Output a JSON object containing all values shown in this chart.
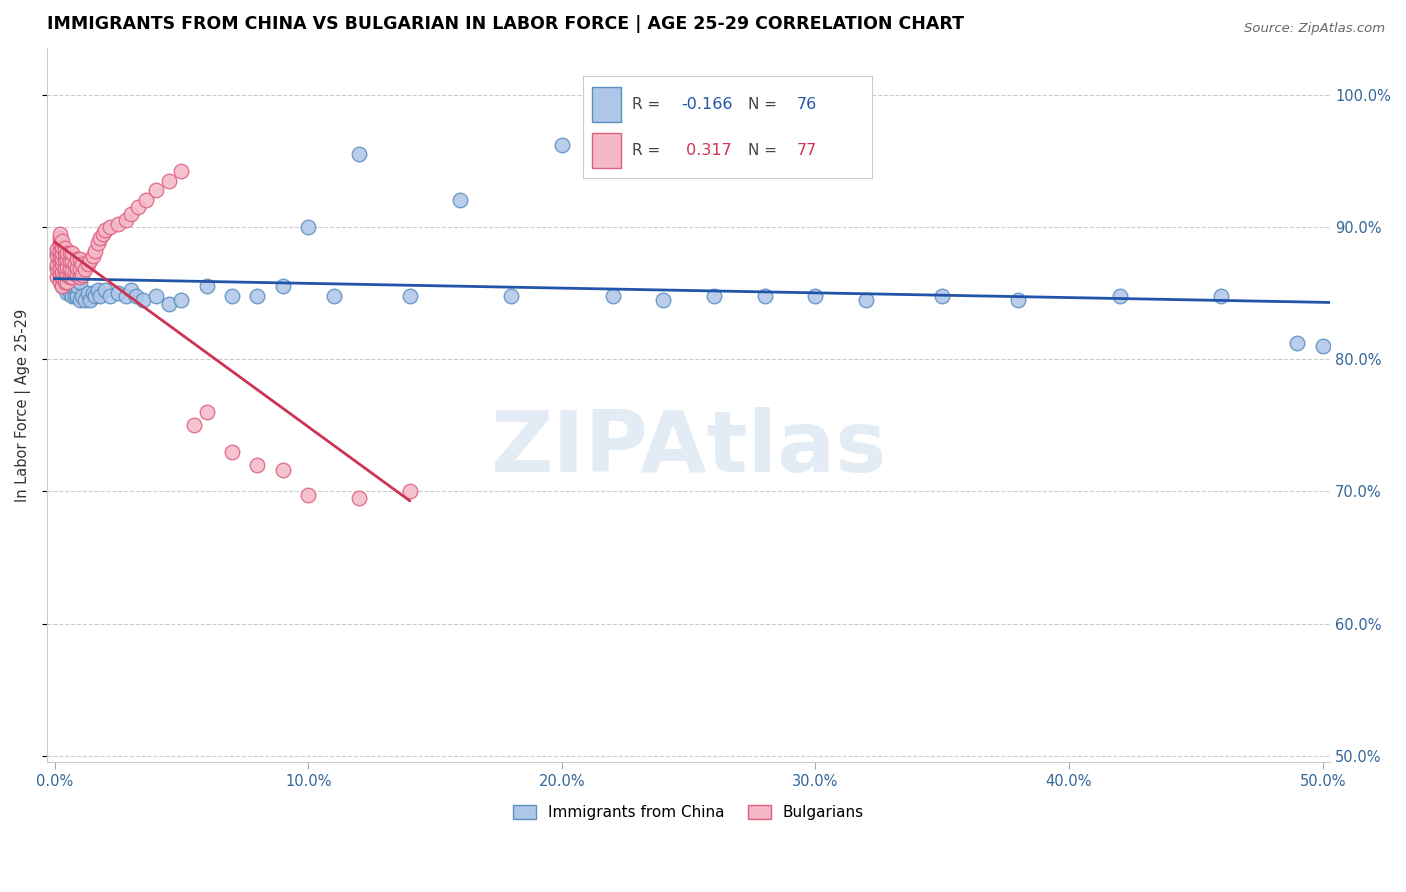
{
  "title": "IMMIGRANTS FROM CHINA VS BULGARIAN IN LABOR FORCE | AGE 25-29 CORRELATION CHART",
  "source": "Source: ZipAtlas.com",
  "ylabel": "In Labor Force | Age 25-29",
  "xlim": [
    -0.003,
    0.503
  ],
  "ylim": [
    0.495,
    1.035
  ],
  "xticks": [
    0.0,
    0.1,
    0.2,
    0.3,
    0.4,
    0.5
  ],
  "xtick_labels": [
    "0.0%",
    "10.0%",
    "20.0%",
    "30.0%",
    "40.0%",
    "50.0%"
  ],
  "yticks": [
    0.5,
    0.6,
    0.7,
    0.8,
    0.9,
    1.0
  ],
  "ytick_labels": [
    "50.0%",
    "60.0%",
    "70.0%",
    "80.0%",
    "90.0%",
    "100.0%"
  ],
  "china_color": "#aec6e8",
  "china_edge_color": "#5b8fbe",
  "bulgarian_color": "#f4b8c8",
  "bulgarian_edge_color": "#e06080",
  "trend_china_color": "#2255aa",
  "trend_bulgarian_color": "#cc3355",
  "watermark": "ZIPAtlas",
  "watermark_color": "#ccdded",
  "china_x": [
    0.001,
    0.001,
    0.002,
    0.002,
    0.002,
    0.002,
    0.003,
    0.003,
    0.003,
    0.003,
    0.003,
    0.004,
    0.004,
    0.004,
    0.004,
    0.004,
    0.005,
    0.005,
    0.005,
    0.005,
    0.005,
    0.006,
    0.006,
    0.006,
    0.006,
    0.007,
    0.007,
    0.007,
    0.008,
    0.008,
    0.008,
    0.009,
    0.009,
    0.01,
    0.01,
    0.011,
    0.012,
    0.013,
    0.014,
    0.015,
    0.016,
    0.017,
    0.018,
    0.02,
    0.022,
    0.025,
    0.028,
    0.03,
    0.032,
    0.035,
    0.04,
    0.045,
    0.05,
    0.06,
    0.07,
    0.08,
    0.09,
    0.1,
    0.11,
    0.12,
    0.14,
    0.16,
    0.18,
    0.2,
    0.22,
    0.24,
    0.26,
    0.28,
    0.3,
    0.32,
    0.35,
    0.38,
    0.42,
    0.46,
    0.49,
    0.5
  ],
  "china_y": [
    0.87,
    0.88,
    0.86,
    0.87,
    0.875,
    0.885,
    0.855,
    0.86,
    0.87,
    0.875,
    0.88,
    0.855,
    0.86,
    0.865,
    0.87,
    0.875,
    0.85,
    0.855,
    0.86,
    0.865,
    0.87,
    0.85,
    0.855,
    0.858,
    0.862,
    0.848,
    0.855,
    0.86,
    0.848,
    0.855,
    0.862,
    0.848,
    0.855,
    0.845,
    0.858,
    0.848,
    0.845,
    0.85,
    0.845,
    0.85,
    0.848,
    0.852,
    0.848,
    0.852,
    0.848,
    0.85,
    0.848,
    0.852,
    0.848,
    0.845,
    0.848,
    0.842,
    0.845,
    0.855,
    0.848,
    0.848,
    0.855,
    0.9,
    0.848,
    0.955,
    0.848,
    0.92,
    0.848,
    0.962,
    0.848,
    0.845,
    0.848,
    0.848,
    0.848,
    0.845,
    0.848,
    0.845,
    0.848,
    0.848,
    0.812,
    0.81
  ],
  "bulgarian_x": [
    0.001,
    0.001,
    0.001,
    0.001,
    0.001,
    0.002,
    0.002,
    0.002,
    0.002,
    0.002,
    0.002,
    0.002,
    0.002,
    0.002,
    0.003,
    0.003,
    0.003,
    0.003,
    0.003,
    0.003,
    0.003,
    0.003,
    0.004,
    0.004,
    0.004,
    0.004,
    0.004,
    0.004,
    0.005,
    0.005,
    0.005,
    0.005,
    0.005,
    0.006,
    0.006,
    0.006,
    0.006,
    0.007,
    0.007,
    0.007,
    0.007,
    0.008,
    0.008,
    0.009,
    0.009,
    0.009,
    0.01,
    0.01,
    0.01,
    0.011,
    0.011,
    0.012,
    0.013,
    0.014,
    0.015,
    0.016,
    0.017,
    0.018,
    0.019,
    0.02,
    0.022,
    0.025,
    0.028,
    0.03,
    0.033,
    0.036,
    0.04,
    0.045,
    0.05,
    0.055,
    0.06,
    0.07,
    0.08,
    0.09,
    0.1,
    0.12,
    0.14
  ],
  "bulgarian_y": [
    0.862,
    0.868,
    0.872,
    0.878,
    0.883,
    0.858,
    0.864,
    0.869,
    0.874,
    0.878,
    0.882,
    0.887,
    0.892,
    0.895,
    0.855,
    0.862,
    0.866,
    0.872,
    0.876,
    0.88,
    0.885,
    0.889,
    0.858,
    0.865,
    0.869,
    0.875,
    0.88,
    0.884,
    0.858,
    0.864,
    0.87,
    0.876,
    0.88,
    0.862,
    0.868,
    0.874,
    0.88,
    0.862,
    0.867,
    0.874,
    0.88,
    0.865,
    0.872,
    0.864,
    0.869,
    0.876,
    0.862,
    0.868,
    0.876,
    0.864,
    0.872,
    0.868,
    0.872,
    0.875,
    0.878,
    0.882,
    0.888,
    0.892,
    0.895,
    0.898,
    0.9,
    0.902,
    0.905,
    0.91,
    0.915,
    0.92,
    0.928,
    0.935,
    0.942,
    0.75,
    0.76,
    0.73,
    0.72,
    0.716,
    0.697,
    0.695,
    0.7
  ]
}
